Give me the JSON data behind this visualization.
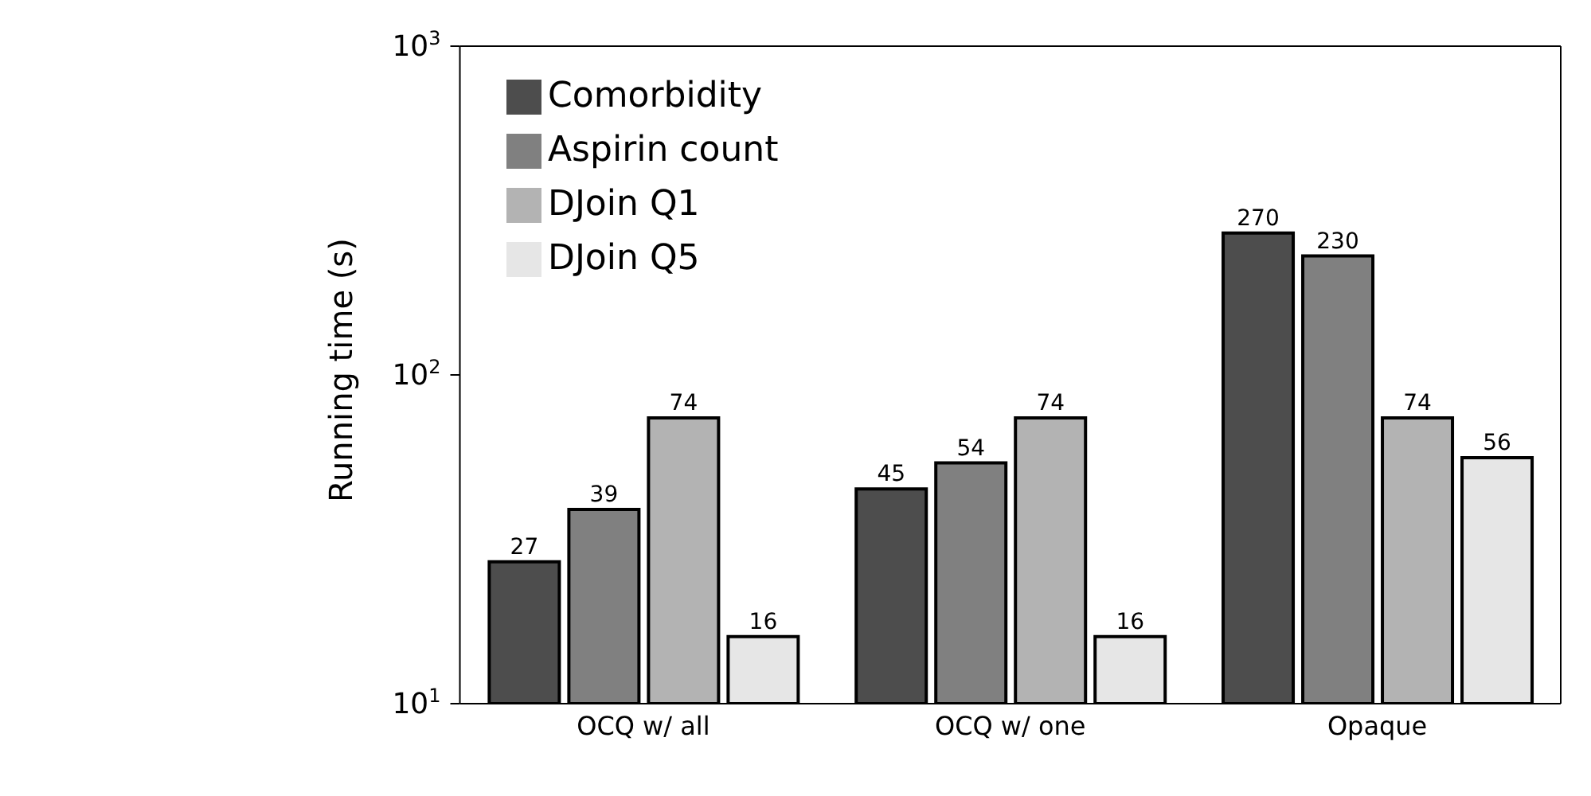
{
  "chart_data": {
    "type": "bar",
    "ylabel": "Running time (s)",
    "categories": [
      "OCQ w/ all",
      "OCQ w/ one",
      "Opaque"
    ],
    "series": [
      {
        "name": "Comorbidity",
        "color": "#4d4d4d",
        "values": [
          27,
          45,
          270
        ]
      },
      {
        "name": "Aspirin count",
        "color": "#808080",
        "values": [
          39,
          54,
          230
        ]
      },
      {
        "name": "DJoin Q1",
        "color": "#b3b3b3",
        "values": [
          74,
          74,
          74
        ]
      },
      {
        "name": "DJoin Q5",
        "color": "#e6e6e6",
        "values": [
          16,
          16,
          56
        ]
      }
    ],
    "log": true,
    "ylim": [
      10,
      1000
    ],
    "yticks": [
      {
        "value": 10,
        "label": "10$^{1}$"
      },
      {
        "value": 100,
        "label": "10$^{2}$"
      },
      {
        "value": 1000,
        "label": "10$^{3}$"
      }
    ],
    "data_labels": true,
    "legend": "top left",
    "grid": false
  }
}
